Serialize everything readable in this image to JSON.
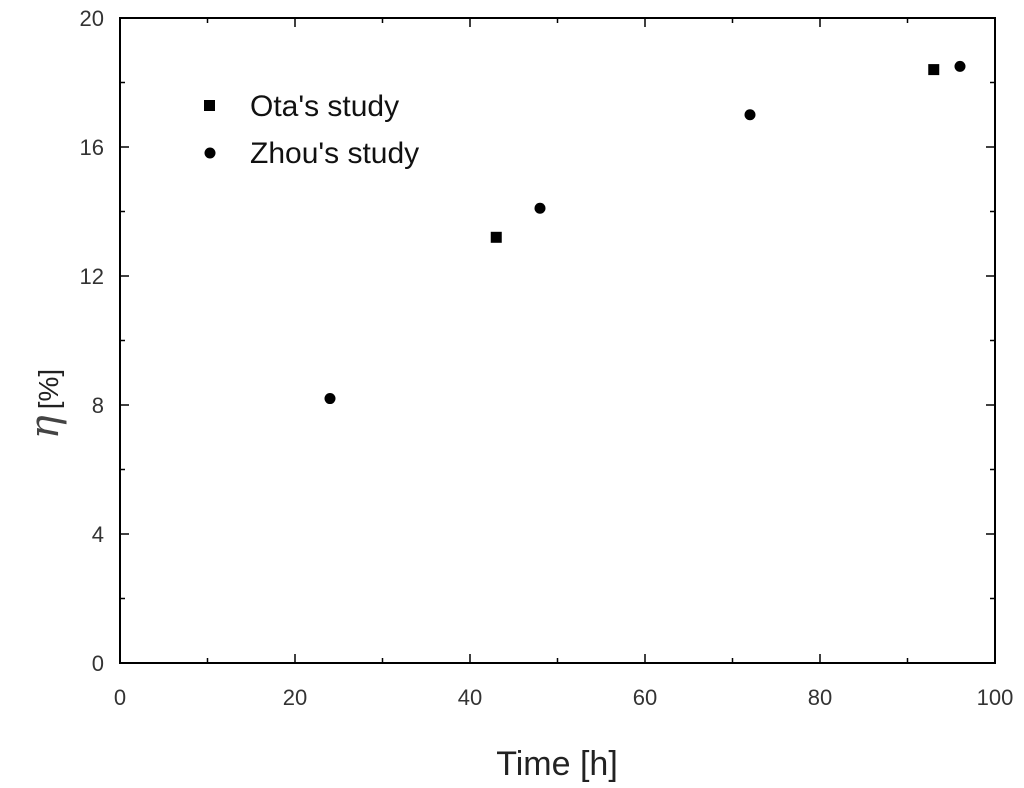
{
  "chart_data": {
    "type": "scatter",
    "xlabel": "Time [h]",
    "ylabel_symbol": "η",
    "ylabel_unit": "[%]",
    "xlim": [
      0,
      100
    ],
    "ylim": [
      0,
      20
    ],
    "x_ticks": [
      "0",
      "20",
      "40",
      "60",
      "80",
      "100"
    ],
    "y_ticks": [
      "0",
      "4",
      "8",
      "12",
      "16",
      "20"
    ],
    "grid": false,
    "legend_position": "top-left",
    "series": [
      {
        "name": "Ota's study",
        "marker": "square",
        "color": "#000000",
        "points": [
          {
            "x": 43,
            "y": 13.2
          },
          {
            "x": 93,
            "y": 18.4
          }
        ]
      },
      {
        "name": "Zhou's study",
        "marker": "circle",
        "color": "#000000",
        "points": [
          {
            "x": 24,
            "y": 8.2
          },
          {
            "x": 48,
            "y": 14.1
          },
          {
            "x": 72,
            "y": 17.0
          },
          {
            "x": 96,
            "y": 18.5
          }
        ]
      }
    ]
  }
}
